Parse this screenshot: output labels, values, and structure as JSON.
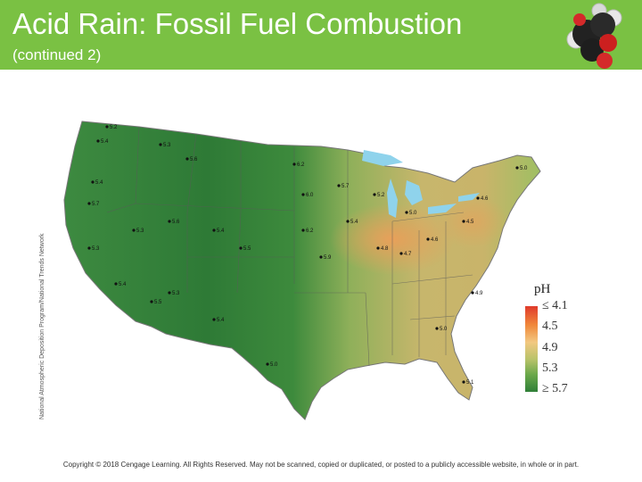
{
  "header": {
    "title": "Acid Rain: Fossil Fuel Combustion",
    "subtitle": "(continued 2)"
  },
  "map": {
    "side_caption": "National Atmospheric Deposition Program/National Trends Network",
    "legend": {
      "title": "pH",
      "ticks": [
        "≤ 4.1",
        "4.5",
        "4.9",
        "5.3",
        "≥ 5.7"
      ]
    },
    "site_values": [
      {
        "label": "5.2",
        "state": "WA"
      },
      {
        "label": "5.4",
        "state": "WA"
      },
      {
        "label": "5.3",
        "state": "ID"
      },
      {
        "label": "5.4",
        "state": "OR"
      },
      {
        "label": "5.7",
        "state": "OR"
      },
      {
        "label": "5.3",
        "state": "CA"
      },
      {
        "label": "5.4",
        "state": "CA"
      },
      {
        "label": "5.5",
        "state": "CA"
      },
      {
        "label": "5.3",
        "state": "NV"
      },
      {
        "label": "5.6",
        "state": "UT"
      },
      {
        "label": "5.4",
        "state": "CO"
      },
      {
        "label": "5.5",
        "state": "CO"
      },
      {
        "label": "5.3",
        "state": "AZ"
      },
      {
        "label": "5.4",
        "state": "NM"
      },
      {
        "label": "5.6",
        "state": "MT"
      },
      {
        "label": "6.2",
        "state": "ND"
      },
      {
        "label": "6.0",
        "state": "SD"
      },
      {
        "label": "6.2",
        "state": "NE"
      },
      {
        "label": "5.9",
        "state": "KS"
      },
      {
        "label": "5.0",
        "state": "TX"
      },
      {
        "label": "5.7",
        "state": "MN"
      },
      {
        "label": "5.4",
        "state": "IA"
      },
      {
        "label": "5.2",
        "state": "WI"
      },
      {
        "label": "5.0",
        "state": "MI"
      },
      {
        "label": "4.8",
        "state": "IL"
      },
      {
        "label": "4.7",
        "state": "IN"
      },
      {
        "label": "4.6",
        "state": "OH"
      },
      {
        "label": "4.5",
        "state": "PA"
      },
      {
        "label": "4.6",
        "state": "NY"
      },
      {
        "label": "4.9",
        "state": "NC"
      },
      {
        "label": "5.0",
        "state": "GA"
      },
      {
        "label": "5.1",
        "state": "FL"
      },
      {
        "label": "5.0",
        "state": "ME"
      }
    ],
    "colors": {
      "high_ph": "#2f7f38",
      "mid_ph": "#b9c36a",
      "low_ph": "#e03a2b",
      "water": "#8fd3ec"
    }
  },
  "footer": {
    "copyright": "Copyright © 2018 Cengage Learning. All Rights Reserved. May not be scanned, copied or duplicated, or posted to a publicly accessible website, in whole or in part."
  }
}
